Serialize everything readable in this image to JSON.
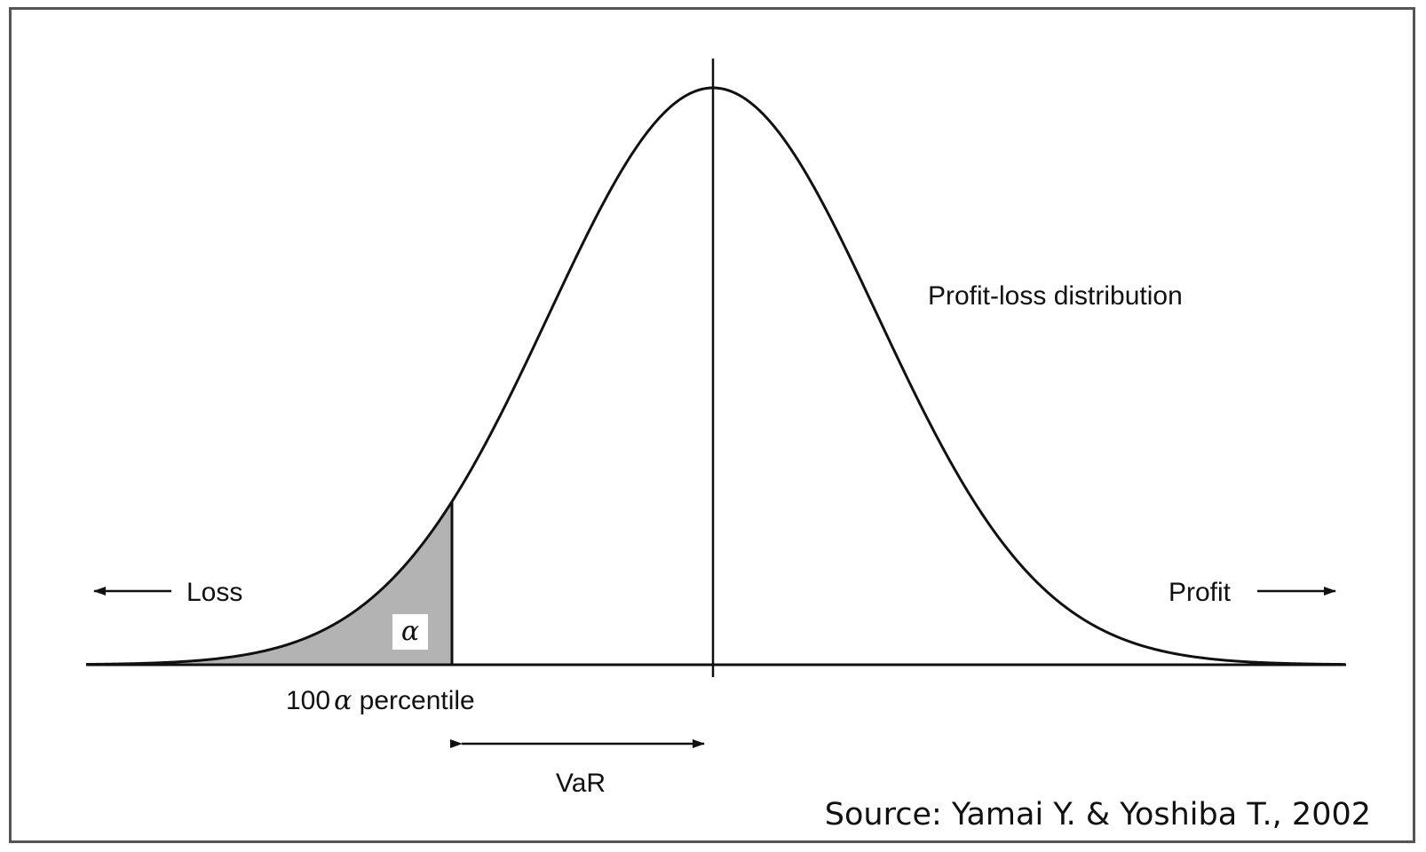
{
  "diagram": {
    "labels": {
      "distribution": "Profit-loss distribution",
      "loss": "Loss",
      "profit": "Profit",
      "alpha": "α",
      "percentile_prefix": "100",
      "percentile_symbol": "α",
      "percentile_suffix": " percentile",
      "var": "VaR",
      "source": "Source: Yamai Y. & Yoshiba T., 2002"
    },
    "colors": {
      "line": "#111111",
      "tail_fill": "#b3b3b3",
      "border": "#555555"
    }
  }
}
